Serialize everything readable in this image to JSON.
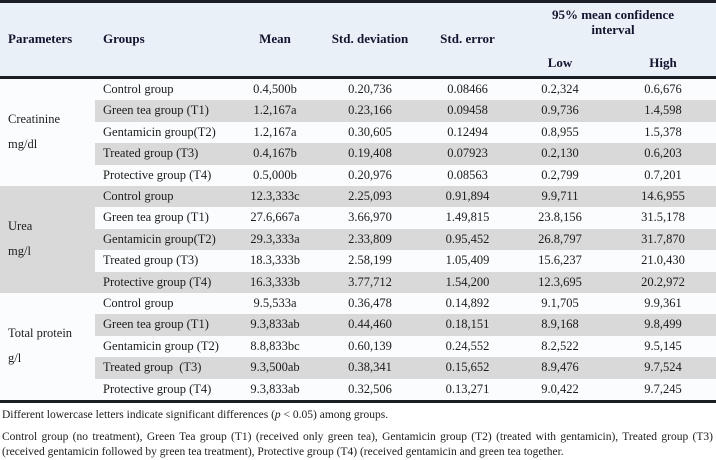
{
  "colors": {
    "header_bg": "#e9f0f8",
    "row_stripe_gray": "#d9d9d9",
    "row_light": "#fbfcfd",
    "border_dark": "#1b1e24",
    "text": "#1c1c1c"
  },
  "table": {
    "header": {
      "parameters": "Parameters",
      "groups": "Groups",
      "mean": "Mean",
      "std_deviation": "Std. deviation",
      "std_error": "Std. error",
      "ci_title": "95% mean confidence interval",
      "ci_low": "Low",
      "ci_high": "High"
    },
    "blocks": [
      {
        "parameter": "Creatinine",
        "unit": "mg/dl",
        "rows": [
          {
            "group": "Control group",
            "mean": "0.4,500b",
            "sd": "0.20,736",
            "se": "0.08466",
            "low": "0.2,324",
            "high": "0.6,676"
          },
          {
            "group": "Green tea group (T1)",
            "mean": "1.2,167a",
            "sd": "0.23,166",
            "se": "0.09458",
            "low": "0.9,736",
            "high": "1.4,598"
          },
          {
            "group": "Gentamicin group(T2)",
            "mean": "1.2,167a",
            "sd": "0.30,605",
            "se": "0.12494",
            "low": "0.8,955",
            "high": "1.5,378"
          },
          {
            "group": "Treated group (T3)",
            "mean": "0.4,167b",
            "sd": "0.19,408",
            "se": "0.07923",
            "low": "0.2,130",
            "high": "0.6,203"
          },
          {
            "group": "Protective group (T4)",
            "mean": "0.5,000b",
            "sd": "0.20,976",
            "se": "0.08563",
            "low": "0.2,799",
            "high": "0.7,201"
          }
        ]
      },
      {
        "parameter": "Urea",
        "unit": "mg/l",
        "rows": [
          {
            "group": "Control group",
            "mean": "12.3,333c",
            "sd": "2.25,093",
            "se": "0.91,894",
            "low": "9.9,711",
            "high": "14.6,955"
          },
          {
            "group": "Green tea group (T1)",
            "mean": "27.6,667a",
            "sd": "3.66,970",
            "se": "1.49,815",
            "low": "23.8,156",
            "high": "31.5,178"
          },
          {
            "group": "Gentamicin group(T2)",
            "mean": "29.3,333a",
            "sd": "2.33,809",
            "se": "0.95,452",
            "low": "26.8,797",
            "high": "31.7,870"
          },
          {
            "group": "Treated group (T3)",
            "mean": "18.3,333b",
            "sd": "2.58,199",
            "se": "1.05,409",
            "low": "15.6,237",
            "high": "21.0,430"
          },
          {
            "group": "Protective group (T4)",
            "mean": "16.3,333b",
            "sd": "3.77,712",
            "se": "1.54,200",
            "low": "12.3,695",
            "high": "20.2,972"
          }
        ]
      },
      {
        "parameter": "Total protein",
        "unit": "g/l",
        "rows": [
          {
            "group": "Control group",
            "mean": "9.5,533a",
            "sd": "0.36,478",
            "se": "0.14,892",
            "low": "9.1,705",
            "high": "9.9,361"
          },
          {
            "group": "Green tea group (T1)",
            "mean": "9.3,833ab",
            "sd": "0.44,460",
            "se": "0.18,151",
            "low": "8.9,168",
            "high": "9.8,499"
          },
          {
            "group": "Gentamicin group (T2)",
            "mean": "8.8,833bc",
            "sd": "0.60,139",
            "se": "0.24,552",
            "low": "8.2,522",
            "high": "9.5,145"
          },
          {
            "group": "Treated group  (T3)",
            "mean": "9.3,500ab",
            "sd": "0.38,341",
            "se": "0.15,652",
            "low": "8.9,476",
            "high": "9.7,524"
          },
          {
            "group": "Protective group (T4)",
            "mean": "9.3,833ab",
            "sd": "0.32,506",
            "se": "0.13,271",
            "low": "9.0,422",
            "high": "9.7,245"
          }
        ]
      }
    ]
  },
  "footnotes": {
    "note1_prefix": "Different lowercase letters indicate significant differences (",
    "note1_p": "p",
    "note1_suffix": " < 0.05) among groups.",
    "note2": "Control group (no treatment), Green Tea group (T1) (received only green tea), Gentamicin group (T2) (treated with gentamicin), Treated group (T3) (received gentamicin followed by green tea treatment), Protective group (T4) (received gentamicin and green tea together."
  }
}
